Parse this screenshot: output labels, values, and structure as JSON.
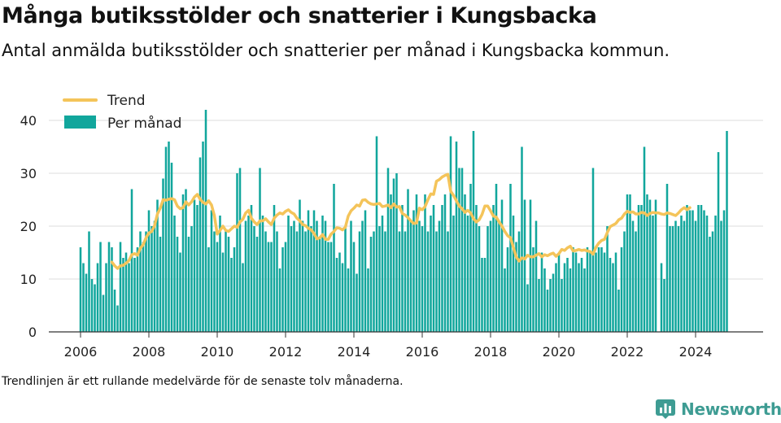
{
  "title": "Många butiksstölder och snatterier i Kungsbacka",
  "subtitle": "Antal anmälda butiksstölder och snatterier per månad i Kungsbacka kommun.",
  "footnote": "Trendlinjen är ett rullande medelvärde för de senaste tolv månaderna.",
  "brand": "Newsworthy",
  "colors": {
    "bars": "#11a69c",
    "trend": "#f4c45a",
    "grid": "#dddddd",
    "axis": "#333333",
    "brand": "#3e9c93"
  },
  "chart_data": {
    "type": "bar",
    "x_start": "2006-01",
    "frequency": "monthly",
    "xticks": [
      "2006",
      "2008",
      "2010",
      "2012",
      "2014",
      "2016",
      "2018",
      "2020",
      "2022",
      "2024"
    ],
    "yticks": [
      "0",
      "10",
      "20",
      "30",
      "40"
    ],
    "ylim": [
      0,
      40
    ],
    "grid": "horizontal",
    "legend_position": "top-left",
    "series": [
      {
        "name": "Per månad",
        "type": "bar",
        "values": [
          16,
          13,
          11,
          19,
          10,
          9,
          13,
          17,
          7,
          13,
          17,
          16,
          8,
          5,
          17,
          14,
          15,
          13,
          27,
          14,
          16,
          19,
          17,
          19,
          23,
          20,
          21,
          25,
          18,
          29,
          35,
          36,
          32,
          22,
          18,
          15,
          26,
          27,
          18,
          20,
          25,
          24,
          33,
          36,
          42,
          16,
          23,
          19,
          17,
          22,
          15,
          19,
          18,
          14,
          16,
          30,
          31,
          13,
          21,
          22,
          24,
          20,
          18,
          31,
          22,
          19,
          17,
          17,
          24,
          19,
          12,
          16,
          17,
          22,
          20,
          21,
          19,
          25,
          21,
          19,
          23,
          20,
          23,
          21,
          18,
          22,
          21,
          17,
          17,
          28,
          14,
          15,
          13,
          20,
          12,
          21,
          17,
          11,
          19,
          21,
          23,
          12,
          18,
          19,
          37,
          20,
          22,
          19,
          31,
          26,
          29,
          30,
          19,
          24,
          19,
          27,
          21,
          23,
          26,
          21,
          20,
          26,
          19,
          22,
          24,
          19,
          21,
          24,
          26,
          19,
          37,
          22,
          36,
          31,
          31,
          26,
          22,
          28,
          38,
          24,
          20,
          14,
          14,
          20,
          21,
          24,
          28,
          21,
          25,
          12,
          16,
          28,
          22,
          17,
          19,
          35,
          25,
          9,
          25,
          16,
          21,
          10,
          15,
          12,
          8,
          10,
          11,
          13,
          15,
          10,
          13,
          14,
          12,
          16,
          15,
          13,
          14,
          12,
          16,
          15,
          31,
          15,
          16,
          16,
          15,
          20,
          14,
          13,
          15,
          8,
          16,
          19,
          26,
          26,
          21,
          19,
          24,
          24,
          35,
          26,
          25,
          22,
          25,
          0,
          13,
          10,
          28,
          20,
          20,
          21,
          20,
          22,
          21,
          24,
          23,
          23,
          21,
          24,
          24,
          23,
          22,
          18,
          19,
          22,
          34,
          21,
          23,
          38
        ]
      },
      {
        "name": "Trend",
        "type": "line",
        "start": "2006-12",
        "values": [
          13.2,
          12.5,
          12.0,
          12.5,
          12.6,
          13.0,
          13.5,
          14.6,
          14.8,
          14.5,
          15.8,
          16.5,
          17.8,
          18.7,
          19.0,
          20.1,
          22.3,
          23.4,
          25.0,
          24.9,
          25.1,
          25.2,
          25.0,
          23.8,
          23.3,
          23.5,
          24.6,
          24.0,
          24.6,
          25.5,
          26.0,
          25.1,
          24.5,
          24.2,
          24.8,
          24.0,
          22.0,
          18.5,
          19.2,
          20.0,
          19.2,
          19.0,
          19.5,
          20.0,
          19.8,
          20.8,
          21.3,
          22.5,
          23.0,
          21.5,
          20.8,
          20.3,
          21.0,
          21.0,
          21.4,
          20.8,
          20.3,
          21.5,
          22.1,
          22.5,
          22.3,
          22.8,
          23.1,
          22.6,
          22.3,
          21.5,
          21.0,
          20.3,
          20.1,
          19.6,
          19.3,
          18.6,
          17.6,
          17.8,
          18.4,
          17.5,
          17.5,
          18.5,
          19.0,
          19.7,
          19.6,
          19.3,
          19.8,
          21.9,
          22.9,
          23.4,
          24.0,
          23.8,
          24.9,
          25.0,
          24.5,
          24.2,
          24.1,
          24.2,
          24.3,
          23.7,
          23.8,
          24.0,
          23.5,
          24.2,
          23.6,
          23.7,
          22.4,
          22.1,
          21.6,
          21.0,
          20.5,
          20.6,
          23.4,
          23.1,
          23.7,
          25.0,
          26.1,
          26.0,
          28.5,
          28.8,
          29.3,
          29.6,
          29.8,
          26.6,
          25.8,
          24.8,
          23.8,
          23.3,
          22.6,
          23.0,
          22.5,
          21.4,
          20.8,
          21.2,
          22.2,
          23.8,
          23.8,
          22.9,
          21.9,
          21.7,
          20.8,
          20.0,
          19.0,
          18.2,
          17.8,
          16.0,
          14.2,
          13.4,
          14.0,
          13.8,
          14.5,
          14.2,
          14.2,
          14.5,
          14.8,
          14.2,
          14.6,
          14.4,
          14.7,
          14.9,
          14.3,
          14.8,
          15.6,
          15.4,
          15.9,
          16.2,
          15.3,
          15.4,
          15.6,
          15.4,
          15.5,
          15.3,
          15.2,
          14.7,
          16.0,
          16.8,
          17.3,
          17.5,
          18.8,
          19.9,
          20.2,
          20.5,
          21.2,
          21.5,
          22.3,
          22.8,
          22.6,
          22.7,
          22.3,
          22.3,
          22.6,
          22.5,
          22.0,
          22.4,
          22.6,
          22.5,
          22.5,
          22.3,
          22.2,
          22.5,
          22.4,
          22.2,
          22.0,
          22.5,
          23.1,
          23.5,
          23.1,
          23.5
        ]
      }
    ]
  }
}
